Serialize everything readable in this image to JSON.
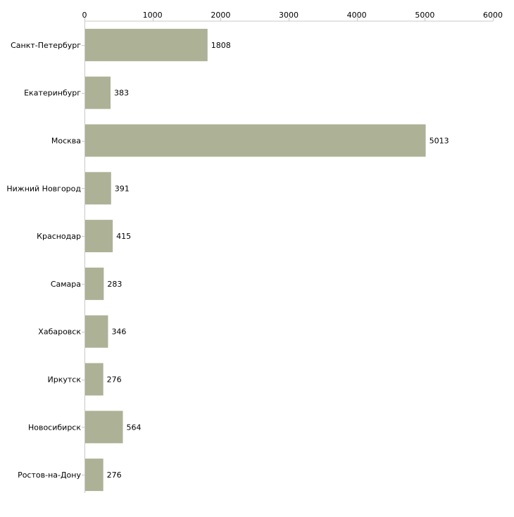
{
  "chart_data": {
    "type": "bar",
    "orientation": "horizontal",
    "title": "",
    "xlabel": "",
    "ylabel": "",
    "xlim": [
      0,
      6000
    ],
    "xticks": [
      0,
      1000,
      2000,
      3000,
      4000,
      5000,
      6000
    ],
    "tick_position": "top",
    "grid": false,
    "legend": "none",
    "bar_color": "#adb296",
    "categories": [
      "Санкт-Петербург",
      "Екатеринбург",
      "Москва",
      "Нижний Новгород",
      "Краснодар",
      "Самара",
      "Хабаровск",
      "Иркутск",
      "Новосибирск",
      "Ростов-на-Дону"
    ],
    "values": [
      1808,
      383,
      5013,
      391,
      415,
      283,
      346,
      276,
      564,
      276
    ]
  }
}
